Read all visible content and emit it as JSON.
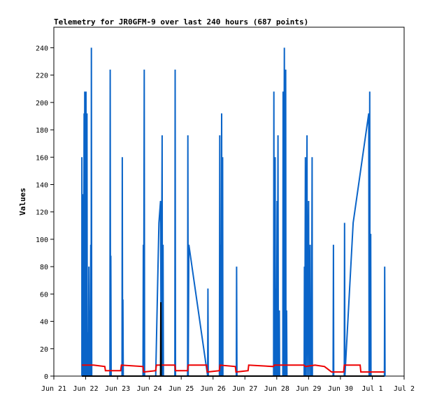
{
  "chart_data": {
    "type": "line",
    "title": "Telemetry for JR0GFM-9 over last 240 hours (687 points)",
    "ylabel": "Values",
    "xlabel": "",
    "x_range": [
      "Jun 21",
      "Jul 2"
    ],
    "ylim": [
      0,
      255
    ],
    "x_ticks": [
      "Jun 21",
      "Jun 22",
      "Jun 23",
      "Jun 24",
      "Jun 25",
      "Jun 26",
      "Jun 27",
      "Jun 28",
      "Jun 29",
      "Jun 30",
      "Jul 1",
      "Jul 2"
    ],
    "y_ticks": [
      0,
      20,
      40,
      60,
      80,
      100,
      120,
      140,
      160,
      180,
      200,
      220,
      240
    ],
    "grid": false,
    "legend": "none",
    "colors": {
      "series_blue": "#0a64c8",
      "series_red": "#ee0000",
      "series_black": "#000000"
    },
    "series": [
      {
        "color": "blue",
        "points": [
          [
            0.88,
            0
          ],
          [
            0.88,
            160
          ],
          [
            0.89,
            0
          ],
          [
            0.9,
            133
          ],
          [
            0.91,
            0
          ],
          [
            0.92,
            80
          ],
          [
            0.93,
            0
          ],
          [
            0.95,
            192
          ],
          [
            0.96,
            0
          ],
          [
            0.97,
            208
          ],
          [
            0.98,
            0
          ],
          [
            1.01,
            208
          ],
          [
            1.02,
            0
          ],
          [
            1.04,
            192
          ],
          [
            1.05,
            0
          ],
          [
            1.08,
            32
          ],
          [
            1.09,
            0
          ],
          [
            1.1,
            80
          ],
          [
            1.11,
            0
          ],
          [
            1.13,
            48
          ],
          [
            1.14,
            0
          ],
          [
            1.16,
            96
          ],
          [
            1.17,
            0
          ],
          [
            1.18,
            240
          ],
          [
            1.19,
            0
          ],
          [
            1.76,
            0
          ],
          [
            1.77,
            224
          ],
          [
            1.78,
            0
          ],
          [
            1.79,
            88
          ],
          [
            1.8,
            0
          ],
          [
            2.14,
            0
          ],
          [
            2.15,
            160
          ],
          [
            2.16,
            0
          ],
          [
            2.17,
            56
          ],
          [
            2.18,
            0
          ],
          [
            2.8,
            0
          ],
          [
            2.81,
            96
          ],
          [
            2.82,
            0
          ],
          [
            2.84,
            224
          ],
          [
            2.85,
            0
          ],
          [
            3.2,
            0
          ],
          [
            3.3,
            112
          ],
          [
            3.35,
            128
          ],
          [
            3.37,
            0
          ],
          [
            3.4,
            176
          ],
          [
            3.41,
            0
          ],
          [
            3.43,
            96
          ],
          [
            3.44,
            0
          ],
          [
            3.8,
            0
          ],
          [
            3.81,
            224
          ],
          [
            3.82,
            0
          ],
          [
            4.2,
            0
          ],
          [
            4.21,
            176
          ],
          [
            4.22,
            0
          ],
          [
            4.24,
            96
          ],
          [
            4.83,
            0
          ],
          [
            4.84,
            64
          ],
          [
            4.85,
            0
          ],
          [
            5.2,
            0
          ],
          [
            5.21,
            176
          ],
          [
            5.22,
            0
          ],
          [
            5.24,
            96
          ],
          [
            5.25,
            0
          ],
          [
            5.27,
            192
          ],
          [
            5.28,
            0
          ],
          [
            5.3,
            160
          ],
          [
            5.31,
            0
          ],
          [
            5.73,
            0
          ],
          [
            5.74,
            80
          ],
          [
            5.75,
            0
          ],
          [
            6.9,
            0
          ],
          [
            6.91,
            208
          ],
          [
            6.92,
            0
          ],
          [
            6.95,
            160
          ],
          [
            6.96,
            0
          ],
          [
            6.98,
            64
          ],
          [
            6.99,
            0
          ],
          [
            7.01,
            128
          ],
          [
            7.02,
            0
          ],
          [
            7.04,
            176
          ],
          [
            7.05,
            0
          ],
          [
            7.08,
            48
          ],
          [
            7.09,
            0
          ],
          [
            7.19,
            0
          ],
          [
            7.2,
            208
          ],
          [
            7.21,
            0
          ],
          [
            7.24,
            240
          ],
          [
            7.25,
            0
          ],
          [
            7.28,
            224
          ],
          [
            7.29,
            0
          ],
          [
            7.31,
            48
          ],
          [
            7.32,
            0
          ],
          [
            7.86,
            0
          ],
          [
            7.87,
            80
          ],
          [
            7.88,
            0
          ],
          [
            7.9,
            160
          ],
          [
            7.91,
            0
          ],
          [
            7.95,
            176
          ],
          [
            7.96,
            0
          ],
          [
            8.0,
            128
          ],
          [
            8.01,
            0
          ],
          [
            8.05,
            96
          ],
          [
            8.06,
            0
          ],
          [
            8.08,
            48
          ],
          [
            8.09,
            0
          ],
          [
            8.11,
            160
          ],
          [
            8.12,
            0
          ],
          [
            8.77,
            0
          ],
          [
            8.78,
            96
          ],
          [
            8.79,
            0
          ],
          [
            9.12,
            0
          ],
          [
            9.13,
            112
          ],
          [
            9.14,
            0
          ],
          [
            9.4,
            112
          ],
          [
            9.89,
            192
          ],
          [
            9.9,
            0
          ],
          [
            9.92,
            208
          ],
          [
            9.93,
            0
          ],
          [
            9.95,
            104
          ],
          [
            9.96,
            0
          ],
          [
            10.38,
            0
          ],
          [
            10.39,
            80
          ],
          [
            10.4,
            0
          ]
        ]
      },
      {
        "color": "red",
        "points": [
          [
            0.88,
            8
          ],
          [
            1.18,
            8
          ],
          [
            1.25,
            8
          ],
          [
            1.6,
            7
          ],
          [
            1.62,
            4
          ],
          [
            2.1,
            4
          ],
          [
            2.12,
            8
          ],
          [
            2.8,
            7
          ],
          [
            2.82,
            3
          ],
          [
            3.2,
            4
          ],
          [
            3.22,
            8
          ],
          [
            3.8,
            8
          ],
          [
            3.82,
            4
          ],
          [
            4.2,
            4
          ],
          [
            4.22,
            8
          ],
          [
            4.8,
            8
          ],
          [
            4.82,
            3
          ],
          [
            5.2,
            4
          ],
          [
            5.22,
            8
          ],
          [
            5.7,
            7
          ],
          [
            5.72,
            3
          ],
          [
            6.1,
            4
          ],
          [
            6.12,
            8
          ],
          [
            6.9,
            7
          ],
          [
            6.92,
            8
          ],
          [
            7.3,
            8
          ],
          [
            7.35,
            8
          ],
          [
            7.85,
            8
          ],
          [
            7.9,
            7
          ],
          [
            8.2,
            8
          ],
          [
            8.5,
            7
          ],
          [
            8.72,
            3
          ],
          [
            9.1,
            3
          ],
          [
            9.12,
            8
          ],
          [
            9.62,
            8
          ],
          [
            9.64,
            3
          ],
          [
            10.38,
            3
          ]
        ]
      },
      {
        "color": "black",
        "points": [
          [
            0.88,
            0
          ],
          [
            3.35,
            0
          ],
          [
            3.36,
            54
          ],
          [
            3.37,
            0
          ],
          [
            10.38,
            0
          ]
        ]
      }
    ]
  }
}
